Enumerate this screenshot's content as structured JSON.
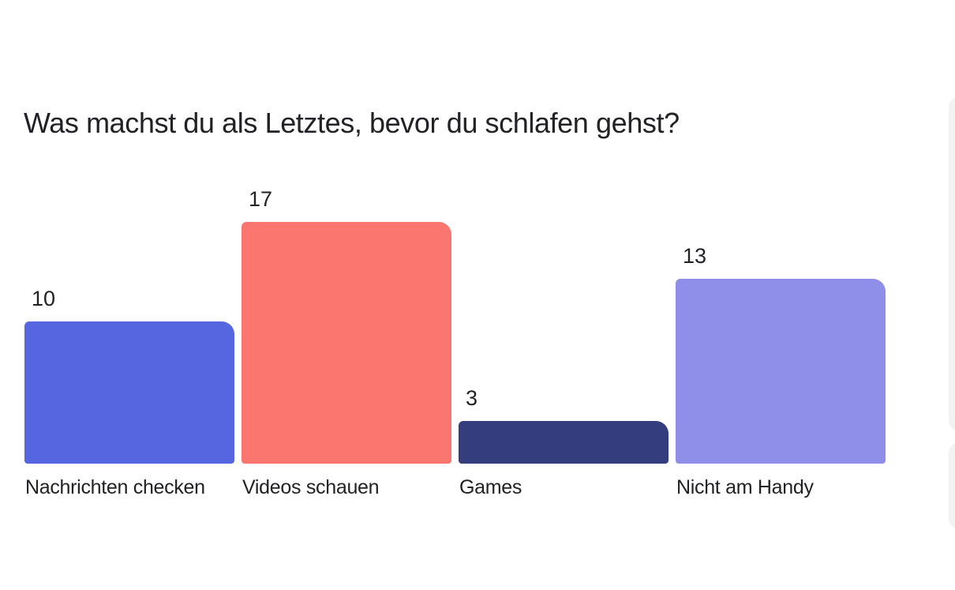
{
  "chart_data": {
    "type": "bar",
    "title": "Was machst du als Letztes, bevor du schlafen gehst?",
    "categories": [
      "Nachrichten checken",
      "Videos schauen",
      "Games",
      "Nicht am Handy"
    ],
    "values": [
      10,
      17,
      3,
      13
    ],
    "value_labels": [
      "10",
      "17",
      "3",
      "13"
    ],
    "colors": [
      "#5666E0",
      "#FB766E",
      "#343D7D",
      "#8F8EE8"
    ],
    "xlabel": "",
    "ylabel": "",
    "ylim": [
      0,
      17
    ],
    "grid": false,
    "legend": false,
    "value_label_position": "above-bar-left",
    "category_label_position": "below-bar-left",
    "title_color": "#212126",
    "label_color": "#212126",
    "background": "#ffffff"
  },
  "ui": {
    "edge_card_color": "#f2f2f3"
  }
}
